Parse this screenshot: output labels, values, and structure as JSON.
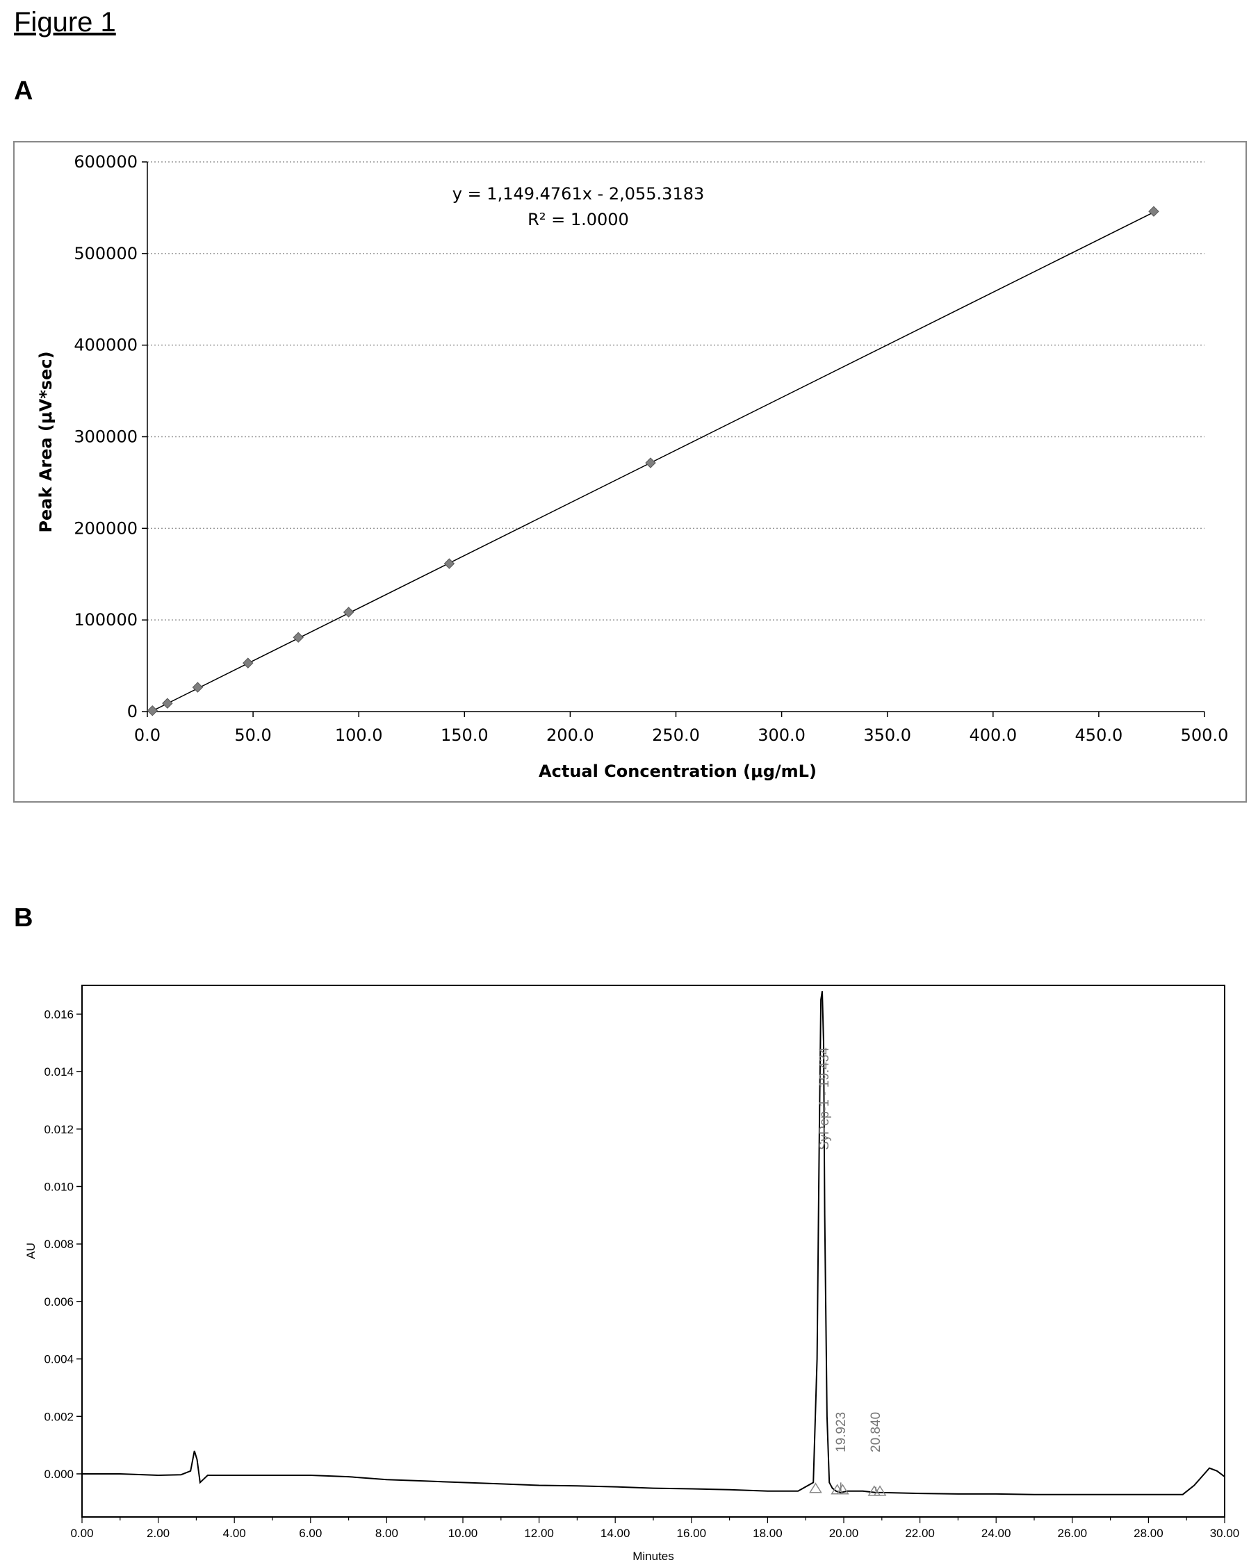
{
  "figure_title": "Figure 1",
  "panels": {
    "a_label": "A",
    "b_label": "B"
  },
  "colors": {
    "marker": "#7f7f7f",
    "line": "#000000",
    "grid": "#999999",
    "frame": "#888888"
  },
  "chart_data": [
    {
      "type": "scatter",
      "panel": "A",
      "xlabel": "Actual Concentration (μg/mL)",
      "ylabel": "Peak Area (μV*sec)",
      "xlim": [
        0,
        500
      ],
      "ylim": [
        0,
        600000
      ],
      "x_ticks": [
        "0.0",
        "50.0",
        "100.0",
        "150.0",
        "200.0",
        "250.0",
        "300.0",
        "350.0",
        "400.0",
        "450.0",
        "500.0"
      ],
      "y_ticks": [
        "0",
        "100000",
        "200000",
        "300000",
        "400000",
        "500000",
        "600000"
      ],
      "grid": "horizontal dotted",
      "annotation": {
        "equation": "y = 1,149.4761x - 2,055.3183",
        "r2": "R² = 1.0000"
      },
      "trendline": {
        "slope": 1149.4761,
        "intercept": -2055.3183,
        "x_range": [
          2.4,
          476
        ]
      },
      "x": [
        2.4,
        9.5,
        23.8,
        47.6,
        71.4,
        95.2,
        142.8,
        238,
        476
      ],
      "y": [
        1000,
        9000,
        26500,
        53000,
        81000,
        108500,
        161500,
        271500,
        546000
      ]
    },
    {
      "type": "line",
      "panel": "B",
      "xlabel": "Minutes",
      "ylabel": "AU",
      "xlim": [
        0,
        30
      ],
      "ylim": [
        -0.0015,
        0.017
      ],
      "x_ticks": [
        "0.00",
        "2.00",
        "4.00",
        "6.00",
        "8.00",
        "10.00",
        "12.00",
        "14.00",
        "16.00",
        "18.00",
        "20.00",
        "22.00",
        "24.00",
        "26.00",
        "28.00",
        "30.00"
      ],
      "y_ticks": [
        "0.000",
        "0.002",
        "0.004",
        "0.006",
        "0.008",
        "0.010",
        "0.012",
        "0.014",
        "0.016"
      ],
      "peak_labels": [
        "SyPep-1 - 19.434",
        "19.923",
        "20.840"
      ],
      "series": [
        {
          "x": [
            0,
            1,
            2,
            2.6,
            2.85,
            2.95,
            3.02,
            3.1,
            3.18,
            3.3,
            3.5,
            4,
            5,
            6,
            7,
            8,
            9,
            10,
            11,
            12,
            13,
            14,
            15,
            16,
            17,
            18,
            18.8,
            19.2,
            19.3,
            19.36,
            19.4,
            19.434,
            19.47,
            19.5,
            19.56,
            19.62,
            19.7,
            19.8,
            19.923,
            20.1,
            20.5,
            20.84,
            21,
            22,
            23,
            24,
            25,
            26,
            27,
            28,
            28.9,
            29.2,
            29.4,
            29.6,
            29.8,
            30
          ],
          "y": [
            0,
            0,
            -5e-05,
            -3e-05,
            0.0001,
            0.0008,
            0.0005,
            -0.0003,
            -0.0002,
            -5e-05,
            -5e-05,
            -5e-05,
            -5e-05,
            -5e-05,
            -0.0001,
            -0.0002,
            -0.00025,
            -0.0003,
            -0.00035,
            -0.0004,
            -0.00042,
            -0.00045,
            -0.0005,
            -0.00052,
            -0.00055,
            -0.0006,
            -0.0006,
            -0.0003,
            0.004,
            0.012,
            0.0165,
            0.0168,
            0.015,
            0.009,
            0.002,
            -0.0003,
            -0.0005,
            -0.0006,
            -0.00065,
            -0.0006,
            -0.0006,
            -0.00065,
            -0.00065,
            -0.00068,
            -0.0007,
            -0.0007,
            -0.00072,
            -0.00072,
            -0.00072,
            -0.00072,
            -0.00072,
            -0.0004,
            -0.0001,
            0.0002,
            0.0001,
            -0.0001
          ]
        }
      ]
    }
  ]
}
